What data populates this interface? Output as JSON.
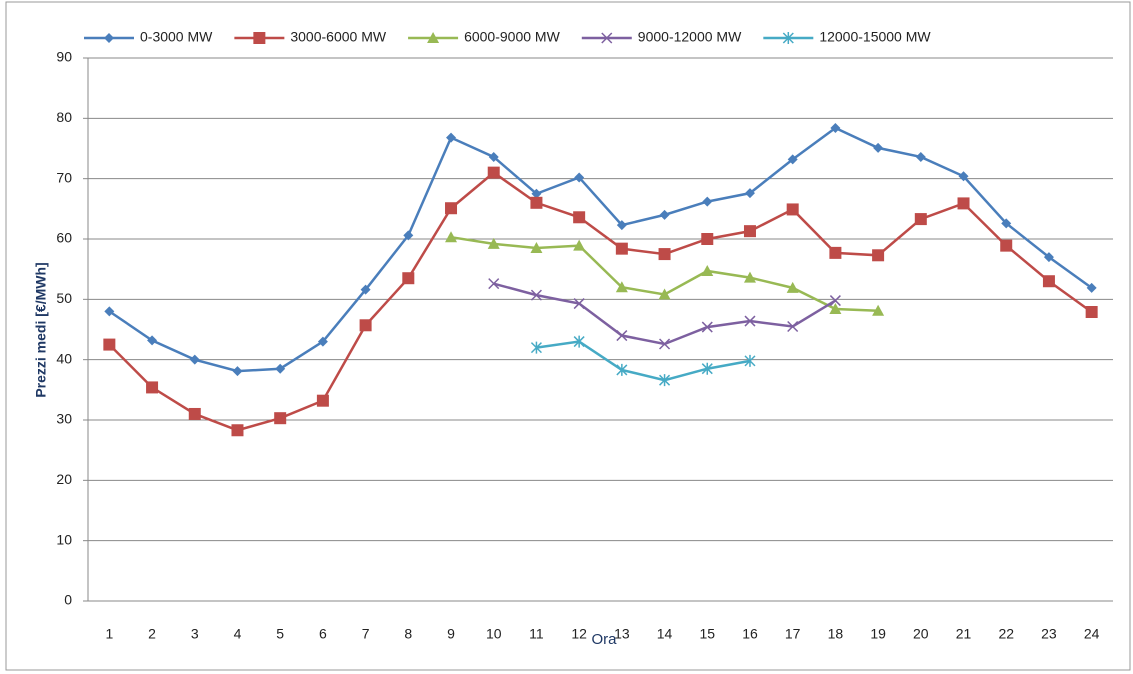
{
  "chart_data": {
    "type": "line",
    "x_label": "Ora",
    "y_label": "Prezzi medi [€/MWh]",
    "categories": [
      "1",
      "2",
      "3",
      "4",
      "5",
      "6",
      "7",
      "8",
      "9",
      "10",
      "11",
      "12",
      "13",
      "14",
      "15",
      "16",
      "17",
      "18",
      "19",
      "20",
      "21",
      "22",
      "23",
      "24"
    ],
    "series": [
      {
        "name": "0-3000 MW",
        "color": "#4a7ebb",
        "marker": "diamond",
        "values": [
          48,
          43.2,
          40,
          38.1,
          38.5,
          43,
          51.6,
          60.6,
          76.8,
          73.6,
          67.5,
          70.2,
          62.3,
          64,
          66.2,
          67.6,
          73.2,
          78.4,
          75.1,
          73.6,
          70.4,
          62.6,
          57,
          51.9
        ]
      },
      {
        "name": "3000-6000 MW",
        "color": "#be4b48",
        "marker": "square",
        "values": [
          42.5,
          35.4,
          31,
          28.3,
          30.3,
          33.2,
          45.7,
          53.5,
          65.1,
          71,
          66,
          63.6,
          58.4,
          57.5,
          60,
          61.3,
          64.9,
          57.7,
          57.3,
          63.3,
          65.9,
          58.9,
          53,
          47.9
        ]
      },
      {
        "name": "6000-9000 MW",
        "color": "#98b954",
        "marker": "triangle",
        "values": [
          null,
          null,
          null,
          null,
          null,
          null,
          null,
          null,
          60.3,
          59.2,
          58.5,
          58.9,
          52,
          50.8,
          54.7,
          53.6,
          51.9,
          48.4,
          48.1,
          null,
          null,
          null,
          null,
          null
        ]
      },
      {
        "name": "9000-12000 MW",
        "color": "#7d60a0",
        "marker": "x",
        "values": [
          null,
          null,
          null,
          null,
          null,
          null,
          null,
          null,
          null,
          52.6,
          50.7,
          49.3,
          44,
          42.6,
          45.4,
          46.4,
          45.5,
          49.8,
          null,
          null,
          null,
          null,
          null,
          null
        ]
      },
      {
        "name": "12000-15000 MW",
        "color": "#46aac5",
        "marker": "star",
        "values": [
          null,
          null,
          null,
          null,
          null,
          null,
          null,
          null,
          null,
          null,
          42,
          43,
          38.3,
          36.6,
          38.5,
          39.8,
          null,
          null,
          null,
          null,
          null,
          null,
          null,
          null
        ]
      }
    ],
    "ylim": [
      0,
      90
    ],
    "yticks": [
      0,
      10,
      20,
      30,
      40,
      50,
      60,
      70,
      80,
      90
    ],
    "grid": true,
    "legend": "top"
  }
}
